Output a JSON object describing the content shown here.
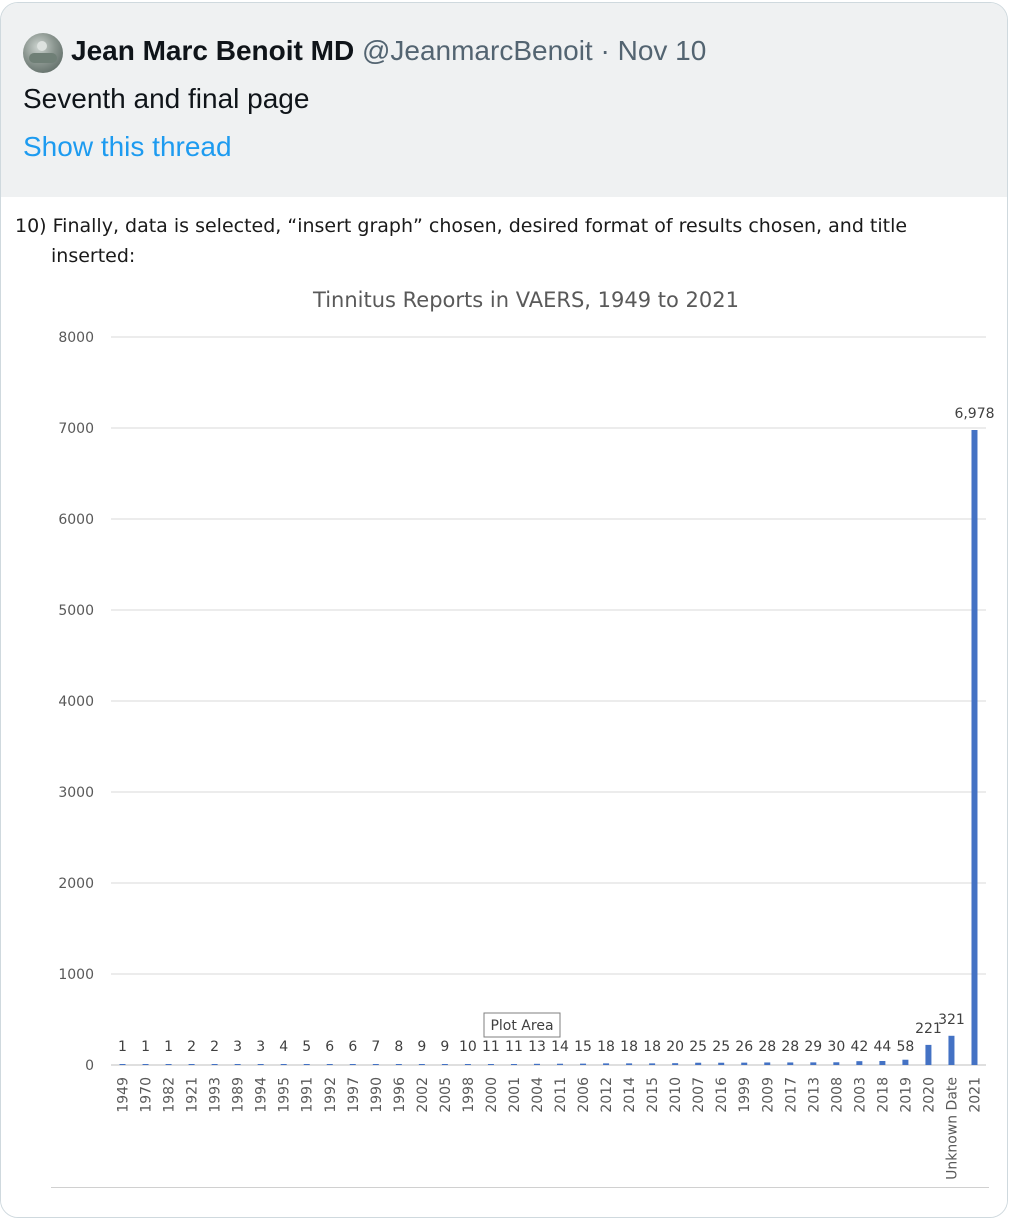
{
  "tweet": {
    "author_name": "Jean Marc Benoit MD",
    "author_handle": "@JeanmarcBenoit",
    "separator": "·",
    "date": "Nov 10",
    "text": "Seventh and final page",
    "thread_link": "Show this thread",
    "avatar_icon": "profile-photo"
  },
  "image": {
    "step_line1": "10) Finally, data is selected, “insert graph” chosen, desired format of results chosen, and title",
    "step_line2": "inserted:",
    "tooltip": "Plot Area"
  },
  "chart_data": {
    "type": "bar",
    "title": "Tinnitus Reports in VAERS, 1949 to 2021",
    "xlabel": "",
    "ylabel": "",
    "ylim": [
      0,
      8000
    ],
    "yticks": [
      0,
      1000,
      2000,
      3000,
      4000,
      5000,
      6000,
      7000,
      8000
    ],
    "grid": true,
    "bar_color": "#4472c4",
    "categories": [
      "1949",
      "1970",
      "1982",
      "1921",
      "1993",
      "1989",
      "1994",
      "1995",
      "1991",
      "1992",
      "1997",
      "1990",
      "1996",
      "2002",
      "2005",
      "1998",
      "2000",
      "2001",
      "2004",
      "2011",
      "2006",
      "2012",
      "2014",
      "2015",
      "2010",
      "2007",
      "2016",
      "1999",
      "2009",
      "2017",
      "2013",
      "2008",
      "2003",
      "2018",
      "2019",
      "2020",
      "Unknown Date",
      "2021"
    ],
    "values": [
      1,
      1,
      1,
      2,
      2,
      3,
      3,
      4,
      5,
      6,
      6,
      7,
      8,
      9,
      9,
      10,
      11,
      11,
      13,
      14,
      15,
      18,
      18,
      18,
      20,
      25,
      25,
      26,
      28,
      28,
      29,
      30,
      42,
      44,
      58,
      221,
      321,
      6978
    ],
    "data_labels": [
      "1",
      "1",
      "1",
      "2",
      "2",
      "3",
      "3",
      "4",
      "5",
      "6",
      "6",
      "7",
      "8",
      "9",
      "9",
      "10",
      "11",
      "11",
      "13",
      "14",
      "15",
      "18",
      "18",
      "18",
      "20",
      "25",
      "25",
      "26",
      "28",
      "28",
      "29",
      "30",
      "42",
      "44",
      "58",
      "221",
      "321",
      "6,978"
    ]
  }
}
